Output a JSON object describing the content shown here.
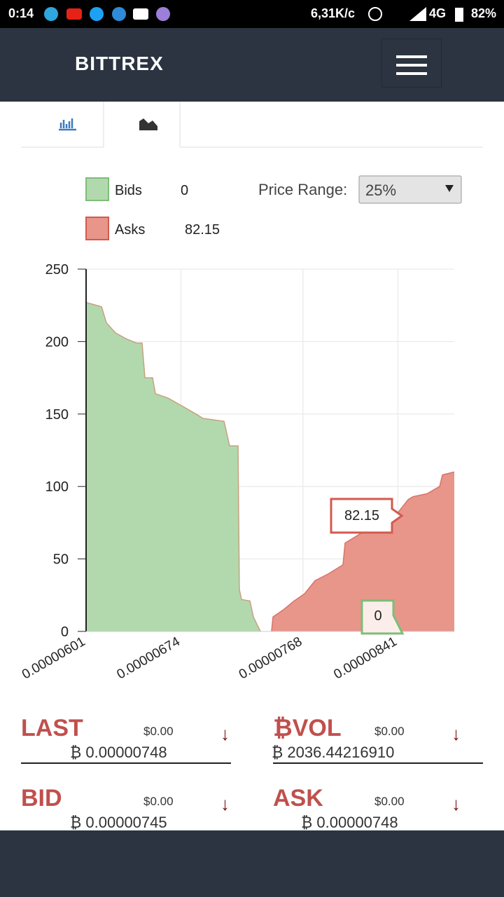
{
  "status_bar": {
    "time": "0:14",
    "speed": "6,31K/c",
    "network": "4G",
    "battery": "82%"
  },
  "header": {
    "brand": "BITTREX"
  },
  "legend": {
    "bids_value": 0,
    "asks_value": 82.15,
    "price_range_label": "Price Range:",
    "price_range_value": "25%"
  },
  "chart_data": {
    "type": "area",
    "series": [
      {
        "name": "Bids",
        "color": "#b2d9ae",
        "line_color": "#c8a080",
        "x": [
          6.01e-06,
          6.129e-06,
          6.166e-06,
          6.236e-06,
          6.317e-06,
          6.398e-06,
          6.441e-06,
          6.463e-06,
          6.522e-06,
          6.544e-06,
          6.641e-06,
          6.759e-06,
          6.856e-06,
          6.91e-06,
          6.991e-06,
          7.072e-06,
          7.115e-06,
          7.18e-06,
          7.19e-06,
          7.207e-06,
          7.271e-06,
          7.298e-06,
          7.352e-06
        ],
        "values": [
          227,
          224,
          213,
          206,
          202,
          199,
          199,
          175,
          175,
          164,
          161,
          155,
          150,
          147,
          146,
          145,
          128,
          128,
          29,
          22,
          21,
          10,
          0
        ]
      },
      {
        "name": "Asks",
        "color": "#e8958a",
        "line_color": "#d9736a",
        "x": [
          7.438e-06,
          7.449e-06,
          7.53e-06,
          7.611e-06,
          7.692e-06,
          7.773e-06,
          7.881e-06,
          7.988e-06,
          8.004e-06,
          8.096e-06,
          8.258e-06,
          8.393e-06,
          8.49e-06,
          8.527e-06,
          8.635e-06,
          8.732e-06,
          8.754e-06,
          8.845e-06
        ],
        "values": [
          0,
          10,
          15,
          21,
          26,
          35,
          40,
          46,
          61,
          66,
          75,
          80,
          91,
          93,
          95,
          100,
          108,
          110
        ]
      }
    ],
    "xlim": [
      6.01e-06,
      8.845e-06
    ],
    "xticks": [
      6.01e-06,
      6.74e-06,
      7.68e-06,
      8.41e-06
    ],
    "ylim": [
      0,
      250
    ],
    "yticks": [
      0,
      50,
      100,
      150,
      200,
      250
    ],
    "grid": true
  },
  "stats": [
    {
      "label": "LAST",
      "usd": "$0.00",
      "btc": "₿ 0.00000748"
    },
    {
      "label": "₿VOL",
      "usd": "$0.00",
      "btc": "₿ 2036.44216910"
    },
    {
      "label": "BID",
      "usd": "$0.00",
      "btc": "₿ 0.00000745"
    },
    {
      "label": "ASK",
      "usd": "$0.00",
      "btc": "₿ 0.00000748"
    }
  ]
}
